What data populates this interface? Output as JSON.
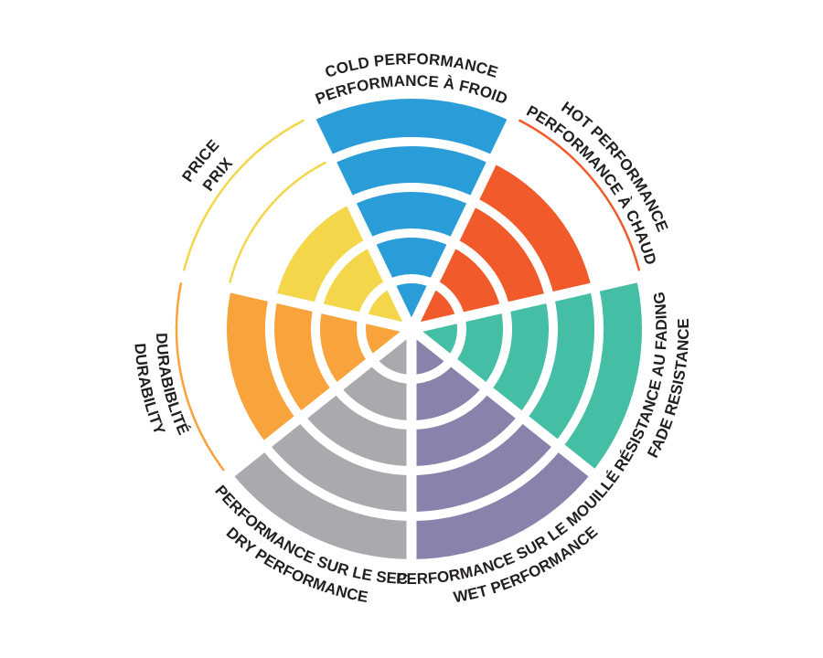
{
  "page": {
    "background_color": "#ffffff",
    "text_color": "#231f20",
    "divider_color": "#ffffff"
  },
  "chart_data": {
    "type": "polar_bar",
    "description": "Tire performance rating wheel with 7 radial segments rated on a 0-5 ring scale; unreached levels are shown as thin outline arcs in the segment color",
    "max_level": 5,
    "level_radii": [
      55,
      105,
      155,
      205,
      255
    ],
    "outline_level_radius": 257,
    "start_angle_deg": -90,
    "grid": "white concentric ring dividers and white radial spokes",
    "legend_position": "curved labels around perimeter, English outer line / French inner line",
    "categories": [
      {
        "key": "cold-performance",
        "label_en": "COLD PERFORMANCE",
        "label_fr": "PERFORMANCE À FROID",
        "value": 5,
        "color": "#2A9DD8"
      },
      {
        "key": "hot-performance",
        "label_en": "HOT PERFORMANCE",
        "label_fr": "PERFORMANCE À CHAUD",
        "value": 4,
        "color": "#F15B2B"
      },
      {
        "key": "fade-resistance",
        "label_en": "FADE RESISTANCE",
        "label_fr": "RÉSISTANCE AU FADING",
        "value": 5,
        "color": "#44BEA4"
      },
      {
        "key": "wet-performance",
        "label_en": "WET PERFORMANCE",
        "label_fr": "PERFORMANCE SUR LE MOUILLÉ",
        "value": 5,
        "color": "#8A82AB"
      },
      {
        "key": "dry-performance",
        "label_en": "DRY PERFORMANCE",
        "label_fr": "PERFORMANCE SUR LE SEC",
        "value": 5,
        "color": "#A9AAAD"
      },
      {
        "key": "durability",
        "label_en": "DURABILITY",
        "label_fr": "DURABIBLITÉ",
        "value": 4,
        "color": "#F8A33C"
      },
      {
        "key": "price",
        "label_en": "PRICE",
        "label_fr": "PRIX",
        "value": 3,
        "color": "#F4D64A"
      }
    ]
  }
}
